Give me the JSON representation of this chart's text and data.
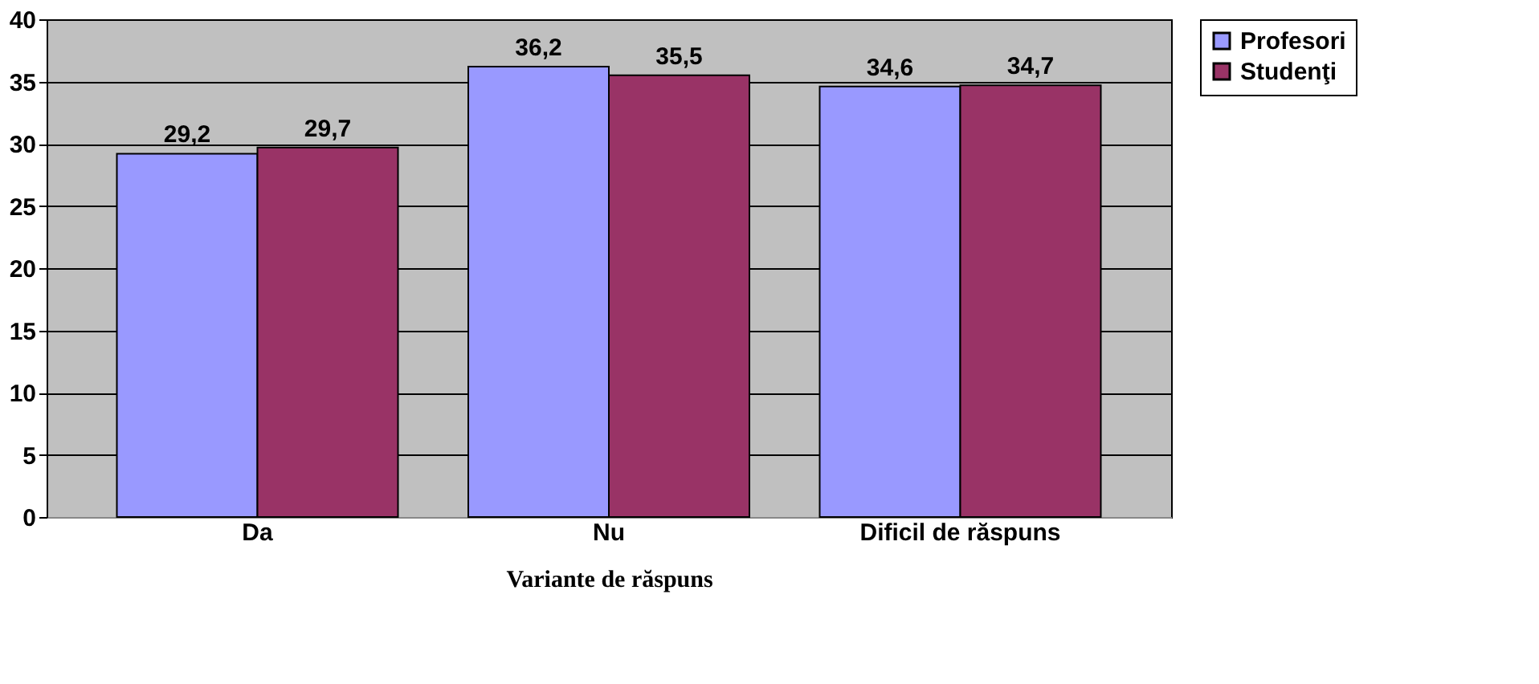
{
  "chart_data": {
    "type": "bar",
    "xlabel": "Variante de răspuns",
    "categories": [
      "Da",
      "Nu",
      "Dificil de răspuns"
    ],
    "series": [
      {
        "name": "Profesori",
        "color": "#9999ff",
        "values": [
          29.2,
          36.2,
          34.6
        ],
        "value_labels": [
          "29,2",
          "36,2",
          "34,6"
        ]
      },
      {
        "name": "Studenţi",
        "color": "#993366",
        "values": [
          29.7,
          35.5,
          34.7
        ],
        "value_labels": [
          "29,7",
          "35,5",
          "34,7"
        ]
      }
    ],
    "ylim": [
      0,
      40
    ],
    "yticks": [
      0,
      5,
      10,
      15,
      20,
      25,
      30,
      35,
      40
    ],
    "grid": "y",
    "legend": "right"
  }
}
